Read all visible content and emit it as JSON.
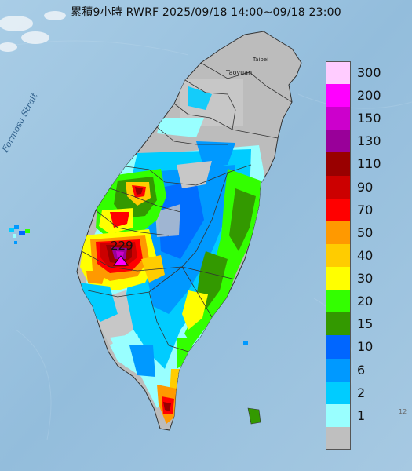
{
  "title": "累積9小時 RWRF 2025/09/18 14:00~09/18 23:00",
  "map": {
    "strait_label": "Formosa Strait",
    "peak_value": "229",
    "city_label": "Taoyuan",
    "city_label2": "Taipei",
    "edge_label": "12"
  },
  "legend": {
    "items": [
      {
        "label": "300",
        "color": "#ffccff"
      },
      {
        "label": "200",
        "color": "#ff00ff"
      },
      {
        "label": "150",
        "color": "#cc00cc"
      },
      {
        "label": "130",
        "color": "#990099"
      },
      {
        "label": "110",
        "color": "#990000"
      },
      {
        "label": "90",
        "color": "#cc0000"
      },
      {
        "label": "70",
        "color": "#ff0000"
      },
      {
        "label": "50",
        "color": "#ff9900"
      },
      {
        "label": "40",
        "color": "#ffcc00"
      },
      {
        "label": "30",
        "color": "#ffff00"
      },
      {
        "label": "20",
        "color": "#33ff00"
      },
      {
        "label": "15",
        "color": "#339900"
      },
      {
        "label": "10",
        "color": "#0066ff"
      },
      {
        "label": "6",
        "color": "#0099ff"
      },
      {
        "label": "2",
        "color": "#00ccff"
      },
      {
        "label": "1",
        "color": "#99ffff"
      },
      {
        "label": "",
        "color": "#bfbfbf"
      }
    ]
  }
}
